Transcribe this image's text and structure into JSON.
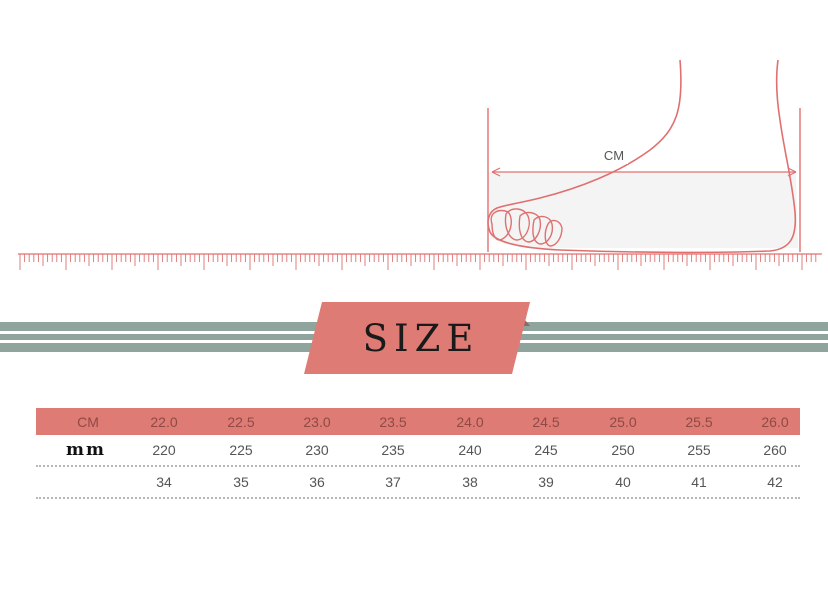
{
  "illustration": {
    "unit_label": "CM"
  },
  "banner": {
    "title": "SIZE"
  },
  "size_table": {
    "header_label": "CM",
    "cm": [
      "22.0",
      "22.5",
      "23.0",
      "23.5",
      "24.0",
      "24.5",
      "25.0",
      "25.5",
      "26.0"
    ],
    "mm_label": "mm",
    "mm": [
      "220",
      "225",
      "230",
      "235",
      "240",
      "245",
      "250",
      "255",
      "260"
    ],
    "eu_label": "",
    "eu": [
      "34",
      "35",
      "36",
      "37",
      "38",
      "39",
      "40",
      "41",
      "42"
    ]
  },
  "colors": {
    "accent_pink": "#de7b75",
    "line_pink": "#e07070",
    "banner_gray_green": "#8fa49c"
  }
}
